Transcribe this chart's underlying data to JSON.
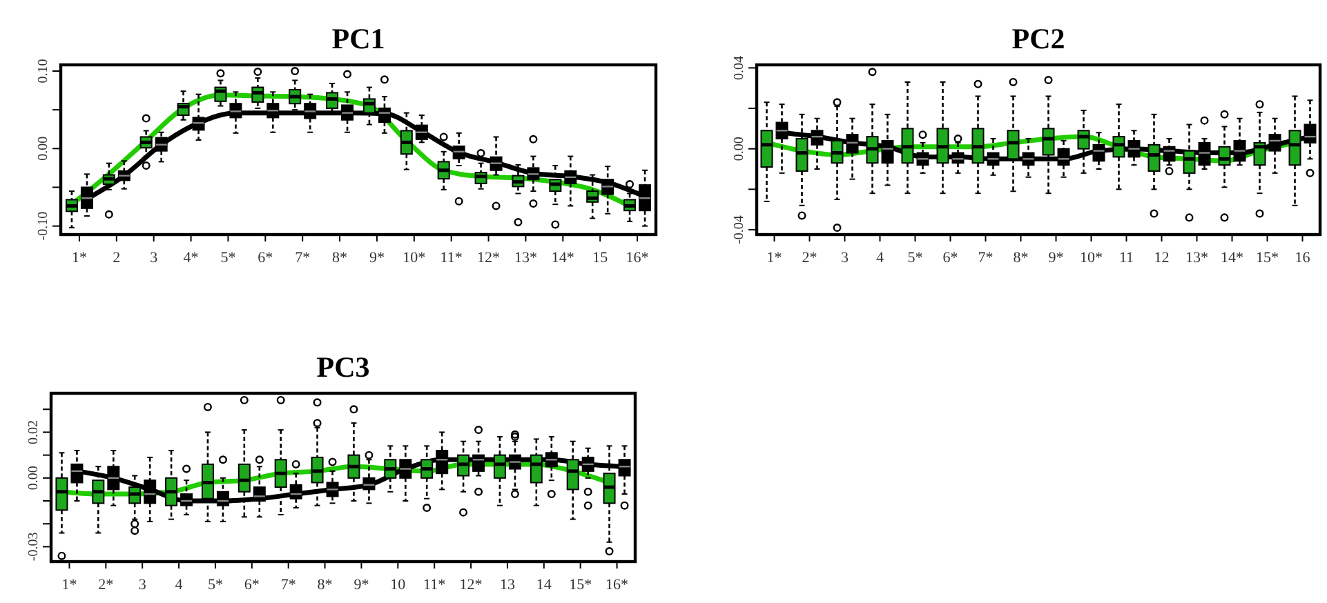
{
  "chart_data": [
    {
      "type": "box",
      "title": "PC1",
      "categories": [
        "1*",
        "2",
        "3",
        "4*",
        "5*",
        "6*",
        "7*",
        "8*",
        "9*",
        "10*",
        "11*",
        "12*",
        "13*",
        "14*",
        "15",
        "16*"
      ],
      "ylim": [
        -0.111,
        0.108
      ],
      "yticks": [
        {
          "value": -0.1,
          "label": "-0.10"
        },
        {
          "value": -0.05,
          "label": null
        },
        {
          "value": 0,
          "label": "0.00"
        },
        {
          "value": 0.05,
          "label": null
        },
        {
          "value": 0.1,
          "label": "0.10"
        }
      ],
      "series": [
        {
          "type": "box",
          "color": "#1ea81e",
          "boxes": [
            {
              "low": -0.102,
              "q1": -0.081,
              "median": -0.074,
              "q3": -0.066,
              "high": -0.055
            },
            {
              "low": -0.053,
              "q1": -0.046,
              "median": -0.039,
              "q3": -0.034,
              "high": -0.019,
              "outliers": [
                -0.085
              ]
            },
            {
              "low": -0.01,
              "q1": 0.001,
              "median": 0.008,
              "q3": 0.015,
              "high": 0.023,
              "outliers": [
                0.039,
                -0.022
              ]
            },
            {
              "low": 0.037,
              "q1": 0.043,
              "median": 0.054,
              "q3": 0.058,
              "high": 0.074
            },
            {
              "low": 0.055,
              "q1": 0.061,
              "median": 0.074,
              "q3": 0.079,
              "high": 0.088,
              "outliers": [
                0.097
              ]
            },
            {
              "low": 0.052,
              "q1": 0.06,
              "median": 0.072,
              "q3": 0.079,
              "high": 0.091,
              "outliers": [
                0.099
              ]
            },
            {
              "low": 0.05,
              "q1": 0.058,
              "median": 0.067,
              "q3": 0.076,
              "high": 0.088,
              "outliers": [
                0.1
              ]
            },
            {
              "low": 0.046,
              "q1": 0.052,
              "median": 0.064,
              "q3": 0.072,
              "high": 0.084
            },
            {
              "low": 0.031,
              "q1": 0.046,
              "median": 0.058,
              "q3": 0.064,
              "high": 0.079
            },
            {
              "low": -0.027,
              "q1": -0.007,
              "median": 0.008,
              "q3": 0.023,
              "high": 0.046
            },
            {
              "low": -0.053,
              "q1": -0.039,
              "median": -0.028,
              "q3": -0.017,
              "high": -0.004,
              "outliers": [
                0.015
              ]
            },
            {
              "low": -0.052,
              "q1": -0.045,
              "median": -0.036,
              "q3": -0.031,
              "high": -0.019,
              "outliers": [
                -0.006
              ]
            },
            {
              "low": -0.058,
              "q1": -0.049,
              "median": -0.043,
              "q3": -0.035,
              "high": -0.021,
              "outliers": [
                -0.095
              ]
            },
            {
              "low": -0.072,
              "q1": -0.055,
              "median": -0.046,
              "q3": -0.04,
              "high": -0.022,
              "outliers": [
                -0.098
              ]
            },
            {
              "low": -0.09,
              "q1": -0.069,
              "median": -0.064,
              "q3": -0.055,
              "high": -0.034
            },
            {
              "low": -0.094,
              "q1": -0.08,
              "median": -0.074,
              "q3": -0.066,
              "high": -0.058,
              "outliers": [
                -0.046
              ]
            }
          ]
        },
        {
          "type": "box",
          "color": "#000000",
          "boxes": [
            {
              "low": -0.087,
              "q1": -0.077,
              "median": -0.064,
              "q3": -0.05,
              "high": -0.033
            },
            {
              "low": -0.052,
              "q1": -0.041,
              "median": -0.035,
              "q3": -0.029,
              "high": -0.016
            },
            {
              "low": -0.017,
              "q1": -0.003,
              "median": 0.005,
              "q3": 0.014,
              "high": 0.021
            },
            {
              "low": 0.011,
              "q1": 0.024,
              "median": 0.033,
              "q3": 0.04,
              "high": 0.07
            },
            {
              "low": 0.02,
              "q1": 0.04,
              "median": 0.048,
              "q3": 0.058,
              "high": 0.073
            },
            {
              "low": 0.021,
              "q1": 0.04,
              "median": 0.049,
              "q3": 0.058,
              "high": 0.073
            },
            {
              "low": 0.021,
              "q1": 0.039,
              "median": 0.048,
              "q3": 0.058,
              "high": 0.07
            },
            {
              "low": 0.021,
              "q1": 0.037,
              "median": 0.046,
              "q3": 0.056,
              "high": 0.073,
              "outliers": [
                0.096
              ]
            },
            {
              "low": 0.02,
              "q1": 0.034,
              "median": 0.046,
              "q3": 0.052,
              "high": 0.067,
              "outliers": [
                0.089
              ]
            },
            {
              "low": 0.008,
              "q1": 0.012,
              "median": 0.021,
              "q3": 0.03,
              "high": 0.043
            },
            {
              "low": -0.022,
              "q1": -0.013,
              "median": -0.004,
              "q3": 0.003,
              "high": 0.02,
              "outliers": [
                -0.068
              ]
            },
            {
              "low": -0.034,
              "q1": -0.028,
              "median": -0.019,
              "q3": -0.011,
              "high": 0.015,
              "outliers": [
                -0.074
              ]
            },
            {
              "low": -0.055,
              "q1": -0.04,
              "median": -0.033,
              "q3": -0.025,
              "high": -0.01,
              "outliers": [
                0.012,
                -0.071
              ]
            },
            {
              "low": -0.074,
              "q1": -0.045,
              "median": -0.037,
              "q3": -0.029,
              "high": -0.01
            },
            {
              "low": -0.084,
              "q1": -0.059,
              "median": -0.049,
              "q3": -0.04,
              "high": -0.023
            },
            {
              "low": -0.1,
              "q1": -0.08,
              "median": -0.064,
              "q3": -0.047,
              "high": -0.028
            }
          ]
        },
        {
          "type": "line",
          "color": "#22cc00",
          "values": [
            -0.072,
            -0.033,
            0.01,
            0.052,
            0.069,
            0.068,
            0.067,
            0.064,
            0.055,
            0.01,
            -0.028,
            -0.036,
            -0.038,
            -0.043,
            -0.053,
            -0.074
          ]
        },
        {
          "type": "line",
          "color": "#000000",
          "values": [
            -0.065,
            -0.035,
            0.005,
            0.033,
            0.046,
            0.046,
            0.046,
            0.046,
            0.045,
            0.022,
            -0.005,
            -0.018,
            -0.032,
            -0.036,
            -0.044,
            -0.062
          ]
        }
      ]
    },
    {
      "type": "box",
      "title": "PC2",
      "categories": [
        "1*",
        "2*",
        "3",
        "4",
        "5*",
        "6*",
        "7*",
        "8*",
        "9*",
        "10*",
        "11",
        "12",
        "13*",
        "14*",
        "15*",
        "16"
      ],
      "ylim": [
        -0.0424,
        0.0415
      ],
      "yticks": [
        {
          "value": -0.04,
          "label": "-0.04"
        },
        {
          "value": -0.02,
          "label": null
        },
        {
          "value": 0,
          "label": "0.00"
        },
        {
          "value": 0.02,
          "label": null
        },
        {
          "value": 0.04,
          "label": "0.04"
        }
      ],
      "series": [
        {
          "type": "box",
          "color": "#1ea81e",
          "boxes": [
            {
              "low": -0.026,
              "q1": -0.009,
              "median": 0.002,
              "q3": 0.009,
              "high": 0.023
            },
            {
              "low": -0.028,
              "q1": -0.011,
              "median": -0.002,
              "q3": 0.005,
              "high": 0.017,
              "outliers": [
                -0.033
              ]
            },
            {
              "low": -0.025,
              "q1": -0.007,
              "median": -0.002,
              "q3": 0.004,
              "high": 0.021,
              "outliers": [
                0.023,
                -0.039
              ]
            },
            {
              "low": -0.022,
              "q1": -0.007,
              "median": 0,
              "q3": 0.006,
              "high": 0.022,
              "outliers": [
                0.038
              ]
            },
            {
              "low": -0.022,
              "q1": -0.007,
              "median": 0.001,
              "q3": 0.01,
              "high": 0.033
            },
            {
              "low": -0.022,
              "q1": -0.007,
              "median": 0.001,
              "q3": 0.01,
              "high": 0.033
            },
            {
              "low": -0.022,
              "q1": -0.007,
              "median": 0.001,
              "q3": 0.01,
              "high": 0.026,
              "outliers": [
                0.032
              ]
            },
            {
              "low": -0.021,
              "q1": -0.005,
              "median": 0.003,
              "q3": 0.009,
              "high": 0.026,
              "outliers": [
                0.033
              ]
            },
            {
              "low": -0.022,
              "q1": -0.003,
              "median": 0.005,
              "q3": 0.01,
              "high": 0.026,
              "outliers": [
                0.034
              ]
            },
            {
              "low": -0.012,
              "q1": 0,
              "median": 0.006,
              "q3": 0.009,
              "high": 0.019
            },
            {
              "low": -0.02,
              "q1": -0.004,
              "median": 0.002,
              "q3": 0.006,
              "high": 0.022
            },
            {
              "low": -0.02,
              "q1": -0.011,
              "median": -0.003,
              "q3": 0.002,
              "high": 0.017,
              "outliers": [
                -0.032
              ]
            },
            {
              "low": -0.02,
              "q1": -0.012,
              "median": -0.005,
              "q3": -0.001,
              "high": 0.012,
              "outliers": [
                -0.034
              ]
            },
            {
              "low": -0.019,
              "q1": -0.008,
              "median": -0.005,
              "q3": 0.001,
              "high": 0.011,
              "outliers": [
                0.017,
                -0.034
              ]
            },
            {
              "low": -0.022,
              "q1": -0.008,
              "median": 0.001,
              "q3": 0.003,
              "high": 0.018,
              "outliers": [
                0.022,
                -0.032
              ]
            },
            {
              "low": -0.028,
              "q1": -0.008,
              "median": 0.002,
              "q3": 0.009,
              "high": 0.026
            }
          ]
        },
        {
          "type": "box",
          "color": "#000000",
          "boxes": [
            {
              "low": -0.012,
              "q1": 0.005,
              "median": 0.009,
              "q3": 0.013,
              "high": 0.022
            },
            {
              "low": -0.01,
              "q1": 0.002,
              "median": 0.006,
              "q3": 0.009,
              "high": 0.015
            },
            {
              "low": -0.015,
              "q1": -0.002,
              "median": 0.003,
              "q3": 0.007,
              "high": 0.015
            },
            {
              "low": -0.018,
              "q1": -0.007,
              "median": 0,
              "q3": 0.004,
              "high": 0.017
            },
            {
              "low": -0.012,
              "q1": -0.008,
              "median": -0.005,
              "q3": -0.002,
              "high": 0.003,
              "outliers": [
                0.007
              ]
            },
            {
              "low": -0.012,
              "q1": -0.007,
              "median": -0.005,
              "q3": -0.002,
              "high": 0.003,
              "outliers": [
                0.005
              ]
            },
            {
              "low": -0.013,
              "q1": -0.008,
              "median": -0.005,
              "q3": -0.002,
              "high": 0.005
            },
            {
              "low": -0.014,
              "q1": -0.008,
              "median": -0.005,
              "q3": -0.002,
              "high": 0.005
            },
            {
              "low": -0.014,
              "q1": -0.008,
              "median": -0.005,
              "q3": 0,
              "high": 0.004
            },
            {
              "low": -0.01,
              "q1": -0.006,
              "median": -0.001,
              "q3": 0.002,
              "high": 0.008
            },
            {
              "low": -0.008,
              "q1": -0.004,
              "median": 0,
              "q3": 0.004,
              "high": 0.009
            },
            {
              "low": -0.008,
              "q1": -0.006,
              "median": -0.001,
              "q3": 0.001,
              "high": 0.005,
              "outliers": [
                -0.011
              ]
            },
            {
              "low": -0.01,
              "q1": -0.008,
              "median": -0.002,
              "q3": 0.003,
              "high": 0.005,
              "outliers": [
                0.014
              ]
            },
            {
              "low": -0.008,
              "q1": -0.006,
              "median": -0.001,
              "q3": 0.004,
              "high": 0.015
            },
            {
              "low": -0.012,
              "q1": -0.001,
              "median": 0.004,
              "q3": 0.007,
              "high": 0.015
            },
            {
              "low": -0.005,
              "q1": 0.003,
              "median": 0.006,
              "q3": 0.012,
              "high": 0.024,
              "outliers": [
                -0.012
              ]
            }
          ]
        },
        {
          "type": "line",
          "color": "#22cc00",
          "values": [
            0.003,
            -0.001,
            -0.003,
            -0.001,
            0.001,
            0.001,
            0.001,
            0.003,
            0.005,
            0.006,
            0.001,
            -0.004,
            -0.005,
            -0.006,
            -0.001,
            0.003
          ]
        },
        {
          "type": "line",
          "color": "#000000",
          "values": [
            0.008,
            0.006,
            0.003,
            0.001,
            -0.004,
            -0.004,
            -0.005,
            -0.005,
            -0.005,
            -0.001,
            0,
            -0.001,
            -0.002,
            -0.002,
            0.002,
            0.006
          ]
        }
      ]
    },
    {
      "type": "box",
      "title": "PC3",
      "categories": [
        "1*",
        "2*",
        "3",
        "4",
        "5*",
        "6*",
        "7*",
        "8*",
        "9*",
        "10",
        "11*",
        "12*",
        "13",
        "14",
        "15*",
        "16*"
      ],
      "ylim": [
        -0.0365,
        0.037
      ],
      "yticks": [
        {
          "value": -0.03,
          "label": "-0.03"
        },
        {
          "value": -0.02,
          "label": null
        },
        {
          "value": -0.01,
          "label": null
        },
        {
          "value": 0,
          "label": "0.00"
        },
        {
          "value": 0.01,
          "label": null
        },
        {
          "value": 0.02,
          "label": "0.02"
        },
        {
          "value": 0.03,
          "label": null
        }
      ],
      "series": [
        {
          "type": "box",
          "color": "#1ea81e",
          "boxes": [
            {
              "low": -0.024,
              "q1": -0.014,
              "median": -0.006,
              "q3": 0,
              "high": 0.011,
              "outliers": [
                -0.034
              ]
            },
            {
              "low": -0.024,
              "q1": -0.011,
              "median": -0.006,
              "q3": -0.001,
              "high": 0.005
            },
            {
              "low": -0.018,
              "q1": -0.011,
              "median": -0.007,
              "q3": -0.004,
              "high": 0.001,
              "outliers": [
                -0.02,
                -0.023
              ]
            },
            {
              "low": -0.018,
              "q1": -0.012,
              "median": -0.006,
              "q3": 0,
              "high": 0.012
            },
            {
              "low": -0.019,
              "q1": -0.009,
              "median": -0.002,
              "q3": 0.006,
              "high": 0.02,
              "outliers": [
                0.031
              ]
            },
            {
              "low": -0.017,
              "q1": -0.006,
              "median": -0.001,
              "q3": 0.006,
              "high": 0.021,
              "outliers": [
                0.034
              ]
            },
            {
              "low": -0.016,
              "q1": -0.004,
              "median": 0.002,
              "q3": 0.008,
              "high": 0.021,
              "outliers": [
                0.034
              ]
            },
            {
              "low": -0.012,
              "q1": -0.002,
              "median": 0.003,
              "q3": 0.009,
              "high": 0.022,
              "outliers": [
                0.033,
                0.024
              ]
            },
            {
              "low": -0.01,
              "q1": 0,
              "median": 0.005,
              "q3": 0.01,
              "high": 0.024,
              "outliers": [
                0.03
              ]
            },
            {
              "low": -0.006,
              "q1": 0,
              "median": 0.004,
              "q3": 0.008,
              "high": 0.014
            },
            {
              "low": -0.009,
              "q1": 0,
              "median": 0.004,
              "q3": 0.008,
              "high": 0.014,
              "outliers": [
                -0.013
              ]
            },
            {
              "low": -0.006,
              "q1": 0.001,
              "median": 0.006,
              "q3": 0.01,
              "high": 0.016,
              "outliers": [
                -0.015
              ]
            },
            {
              "low": -0.012,
              "q1": 0,
              "median": 0.006,
              "q3": 0.01,
              "high": 0.018
            },
            {
              "low": -0.012,
              "q1": -0.002,
              "median": 0.006,
              "q3": 0.01,
              "high": 0.017
            },
            {
              "low": -0.018,
              "q1": -0.005,
              "median": 0.003,
              "q3": 0.008,
              "high": 0.016
            },
            {
              "low": -0.028,
              "q1": -0.011,
              "median": -0.004,
              "q3": 0.002,
              "high": 0.014,
              "outliers": [
                -0.032
              ]
            }
          ]
        },
        {
          "type": "box",
          "color": "#000000",
          "boxes": [
            {
              "low": -0.01,
              "q1": -0.002,
              "median": 0.003,
              "q3": 0.006,
              "high": 0.012
            },
            {
              "low": -0.012,
              "q1": -0.005,
              "median": 0,
              "q3": 0.005,
              "high": 0.012
            },
            {
              "low": -0.019,
              "q1": -0.011,
              "median": -0.007,
              "q3": -0.001,
              "high": 0.009
            },
            {
              "low": -0.016,
              "q1": -0.012,
              "median": -0.01,
              "q3": -0.007,
              "high": -0.001,
              "outliers": [
                0.004
              ]
            },
            {
              "low": -0.019,
              "q1": -0.012,
              "median": -0.01,
              "q3": -0.006,
              "high": 0,
              "outliers": [
                0.008
              ]
            },
            {
              "low": -0.017,
              "q1": -0.01,
              "median": -0.008,
              "q3": -0.004,
              "high": 0.005,
              "outliers": [
                0.008
              ]
            },
            {
              "low": -0.013,
              "q1": -0.009,
              "median": -0.007,
              "q3": -0.003,
              "high": 0.002,
              "outliers": [
                0.006
              ]
            },
            {
              "low": -0.011,
              "q1": -0.008,
              "median": -0.005,
              "q3": -0.002,
              "high": 0.003,
              "outliers": [
                0.007
              ]
            },
            {
              "low": -0.011,
              "q1": -0.005,
              "median": -0.003,
              "q3": 0,
              "high": 0.008,
              "outliers": [
                0.01
              ]
            },
            {
              "low": -0.01,
              "q1": 0,
              "median": 0.004,
              "q3": 0.008,
              "high": 0.014
            },
            {
              "low": -0.005,
              "q1": 0.002,
              "median": 0.008,
              "q3": 0.012,
              "high": 0.02
            },
            {
              "low": 0.001,
              "q1": 0.003,
              "median": 0.008,
              "q3": 0.01,
              "high": 0.016,
              "outliers": [
                0.021,
                -0.006
              ]
            },
            {
              "low": -0.005,
              "q1": 0.004,
              "median": 0.007,
              "q3": 0.01,
              "high": 0.016,
              "outliers": [
                0.019,
                0.018,
                -0.007
              ]
            },
            {
              "low": -0.001,
              "q1": 0.005,
              "median": 0.008,
              "q3": 0.011,
              "high": 0.018,
              "outliers": [
                -0.007
              ]
            },
            {
              "low": 0,
              "q1": 0.003,
              "median": 0.006,
              "q3": 0.009,
              "high": 0.013,
              "outliers": [
                -0.006,
                -0.012
              ]
            },
            {
              "low": -0.007,
              "q1": 0.001,
              "median": 0.005,
              "q3": 0.008,
              "high": 0.014,
              "outliers": [
                -0.012
              ]
            }
          ]
        },
        {
          "type": "line",
          "color": "#22cc00",
          "values": [
            -0.006,
            -0.007,
            -0.007,
            -0.006,
            -0.002,
            -0.001,
            0.002,
            0.003,
            0.005,
            0.004,
            0.003,
            0.006,
            0.006,
            0.006,
            0.003,
            -0.002
          ]
        },
        {
          "type": "line",
          "color": "#000000",
          "values": [
            0.003,
            0,
            -0.005,
            -0.01,
            -0.01,
            -0.009,
            -0.007,
            -0.005,
            -0.003,
            0.004,
            0.008,
            0.008,
            0.008,
            0.008,
            0.006,
            0.005
          ]
        }
      ]
    }
  ]
}
